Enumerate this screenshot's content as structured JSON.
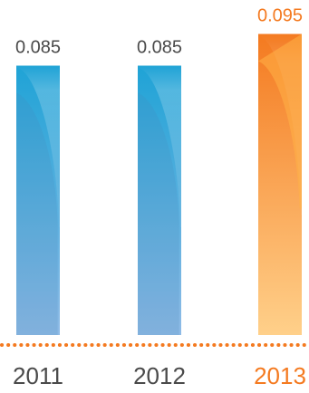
{
  "chart_data": {
    "type": "bar",
    "categories": [
      "2011",
      "2012",
      "2013"
    ],
    "values": [
      0.085,
      0.085,
      0.095
    ],
    "value_labels": [
      "0.085",
      "0.085",
      "0.095"
    ],
    "highlight_index": 2,
    "ylim": [
      0,
      0.1
    ],
    "grid": false,
    "colors": {
      "bar_top": "#1fa3d6",
      "bar_bottom": "#8fbbe6",
      "bar_shade": "#4a85b8",
      "highlight_top": "#f47a20",
      "highlight_bottom": "#ffd08a",
      "highlight_shade": "#ffb347",
      "label_default": "#4a4a4a",
      "label_highlight": "#f47a20",
      "baseline_dots": "#f47a20"
    }
  }
}
